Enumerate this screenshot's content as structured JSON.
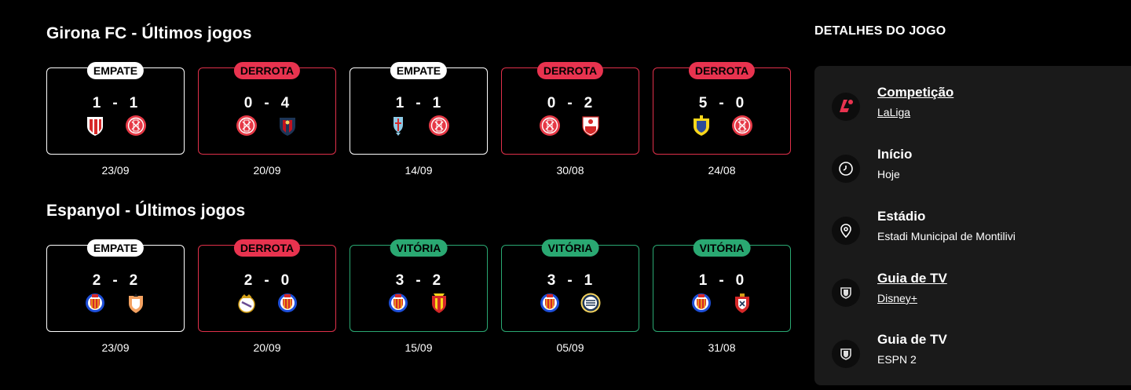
{
  "sections": [
    {
      "title": "Girona FC - Últimos jogos",
      "matches": [
        {
          "result": "EMPATE",
          "type": "draw",
          "home_score": "1",
          "away_score": "1",
          "home_crest": "athletic-bilbao-crest",
          "away_crest": "girona-crest",
          "date": "23/09"
        },
        {
          "result": "DERROTA",
          "type": "loss",
          "home_score": "0",
          "away_score": "4",
          "home_crest": "girona-crest",
          "away_crest": "levante-crest",
          "date": "20/09"
        },
        {
          "result": "EMPATE",
          "type": "draw",
          "home_score": "1",
          "away_score": "1",
          "home_crest": "celta-crest",
          "away_crest": "girona-crest",
          "date": "14/09"
        },
        {
          "result": "DERROTA",
          "type": "loss",
          "home_score": "0",
          "away_score": "2",
          "home_crest": "girona-crest",
          "away_crest": "sevilla-crest",
          "date": "30/08"
        },
        {
          "result": "DERROTA",
          "type": "loss",
          "home_score": "5",
          "away_score": "0",
          "home_crest": "villarreal-crest",
          "away_crest": "girona-crest",
          "date": "24/08"
        }
      ]
    },
    {
      "title": "Espanyol - Últimos jogos",
      "matches": [
        {
          "result": "EMPATE",
          "type": "draw",
          "home_score": "2",
          "away_score": "2",
          "home_crest": "espanyol-crest",
          "away_crest": "valencia-crest",
          "date": "23/09"
        },
        {
          "result": "DERROTA",
          "type": "loss",
          "home_score": "2",
          "away_score": "0",
          "home_crest": "real-madrid-crest",
          "away_crest": "espanyol-crest",
          "date": "20/09"
        },
        {
          "result": "VITÓRIA",
          "type": "win",
          "home_score": "3",
          "away_score": "2",
          "home_crest": "espanyol-crest",
          "away_crest": "mallorca-crest",
          "date": "15/09"
        },
        {
          "result": "VITÓRIA",
          "type": "win",
          "home_score": "3",
          "away_score": "1",
          "home_crest": "espanyol-crest",
          "away_crest": "real-sociedad-crest",
          "date": "05/09"
        },
        {
          "result": "VITÓRIA",
          "type": "win",
          "home_score": "1",
          "away_score": "0",
          "home_crest": "espanyol-crest",
          "away_crest": "osasuna-crest",
          "date": "31/08"
        }
      ]
    }
  ],
  "details": {
    "title": "DETALHES DO JOGO",
    "items": [
      {
        "label": "Competição",
        "value": "LaLiga",
        "icon": "laliga-icon",
        "link": true
      },
      {
        "label": "Início",
        "value": "Hoje",
        "icon": "clock-icon",
        "link": false
      },
      {
        "label": "Estádio",
        "value": "Estadi Municipal de Montilivi",
        "icon": "location-pin-icon",
        "link": false
      },
      {
        "label": "Guia de TV",
        "value": "Disney+",
        "icon": "tv-shield-icon",
        "link": true
      },
      {
        "label": "Guia de TV",
        "value": "ESPN 2",
        "icon": "tv-shield-icon",
        "link": false
      }
    ]
  },
  "colors": {
    "loss": "#e8334f",
    "win": "#2aa872",
    "draw": "#ffffff",
    "laliga": "#e8334f"
  }
}
